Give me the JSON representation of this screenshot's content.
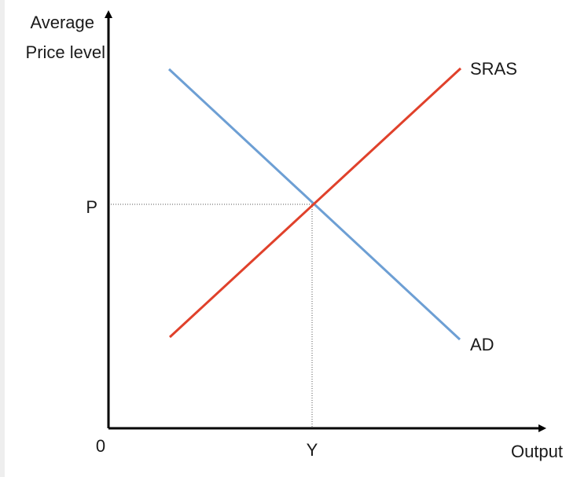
{
  "diagram": {
    "y_axis_label_line1": "Average",
    "y_axis_label_line2": "Price level",
    "x_axis_label": "Output",
    "origin_label": "0",
    "price_label": "P",
    "output_label": "Y",
    "curves": [
      {
        "name": "SRAS",
        "color": "#e0412b"
      },
      {
        "name": "AD",
        "color": "#6d9fd4"
      }
    ],
    "axis_color": "#000000",
    "guide_color": "#555555"
  }
}
